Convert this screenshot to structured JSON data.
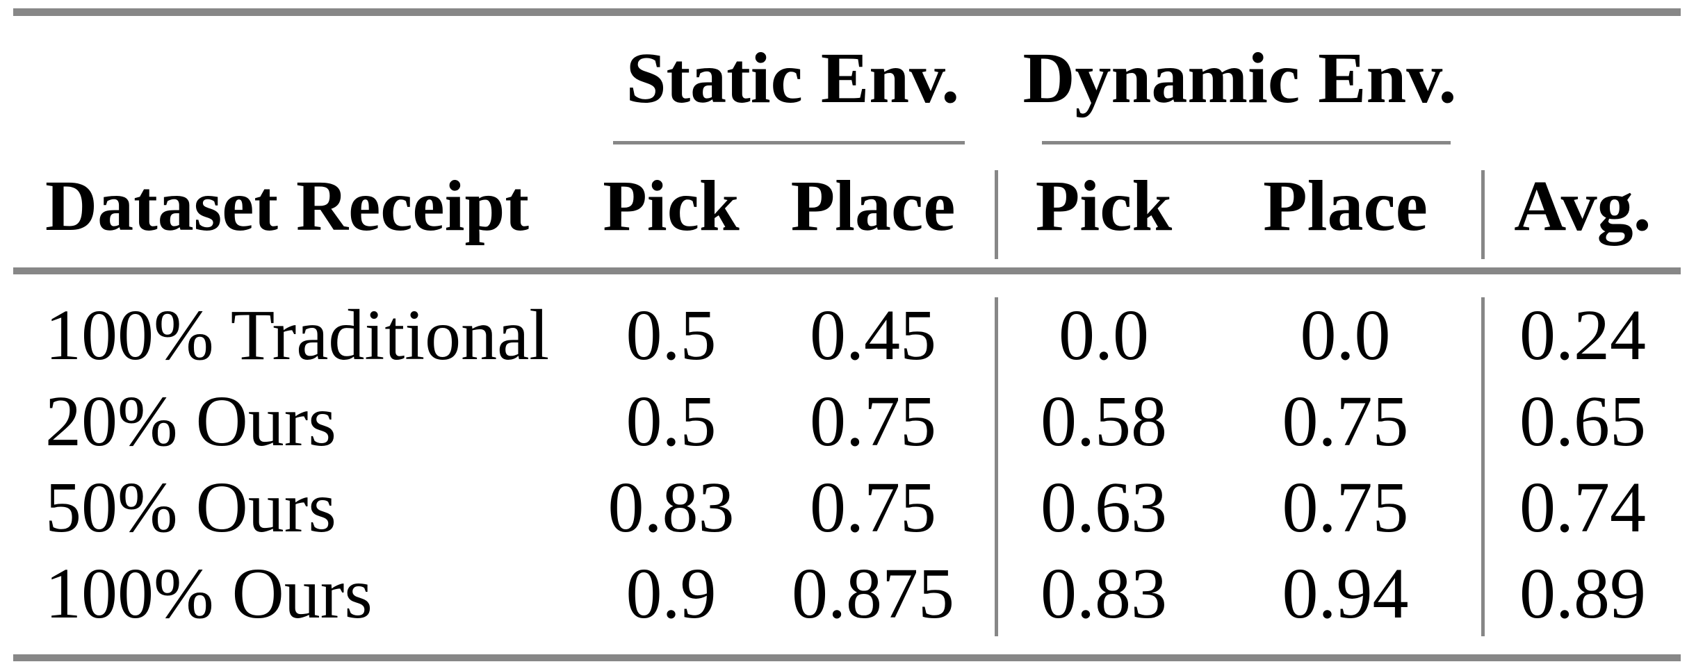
{
  "table": {
    "group_headers": [
      "Static Env.",
      "Dynamic Env."
    ],
    "columns": [
      "Dataset Receipt",
      "Pick",
      "Place",
      "Pick",
      "Place",
      "Avg."
    ],
    "rows": [
      {
        "label": "100% Traditional",
        "values": [
          "0.5",
          "0.45",
          "0.0",
          "0.0",
          "0.24"
        ]
      },
      {
        "label": "20% Ours",
        "values": [
          "0.5",
          "0.75",
          "0.58",
          "0.75",
          "0.65"
        ]
      },
      {
        "label": "50% Ours",
        "values": [
          "0.83",
          "0.75",
          "0.63",
          "0.75",
          "0.74"
        ]
      },
      {
        "label": "100% Ours",
        "values": [
          "0.9",
          "0.875",
          "0.83",
          "0.94",
          "0.89"
        ]
      }
    ],
    "colors": {
      "rule_gray": "#878787",
      "text": "#000000",
      "background": "#ffffff"
    }
  }
}
